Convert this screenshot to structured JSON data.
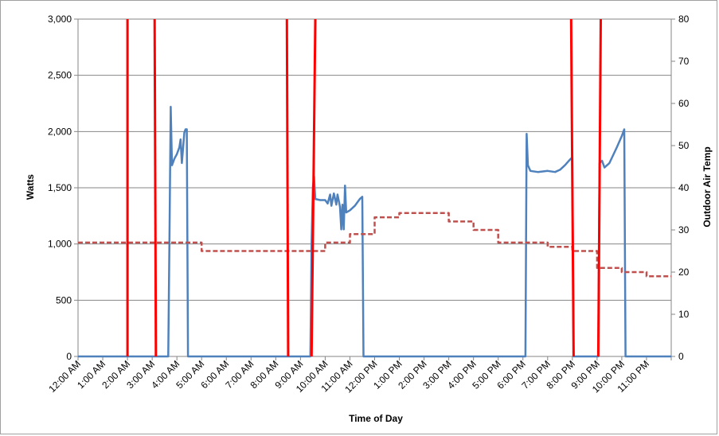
{
  "chart_data": {
    "type": "line",
    "xlabel": "Time of Day",
    "ylabel": "Watts",
    "y2label": "Outdoor Air Temp",
    "ylim": [
      0,
      3000
    ],
    "y2lim": [
      0,
      80
    ],
    "x_unit": "hours",
    "xlim": [
      0,
      24
    ],
    "categories": [
      "12:00 AM",
      "1:00 AM",
      "2:00 AM",
      "3:00 AM",
      "4:00 AM",
      "5:00 AM",
      "6:00 AM",
      "7:00 AM",
      "8:00 AM",
      "9:00 AM",
      "10:00 AM",
      "11:00 AM",
      "12:00 PM",
      "1:00 PM",
      "2:00 PM",
      "3:00 PM",
      "4:00 PM",
      "5:00 PM",
      "6:00 PM",
      "7:00 PM",
      "8:00 PM",
      "9:00 PM",
      "10:00 PM",
      "11:00 PM"
    ],
    "y_ticks": [
      "0",
      "500",
      "1,000",
      "1,500",
      "2,000",
      "2,500",
      "3,000"
    ],
    "y2_ticks": [
      "0",
      "10",
      "20",
      "30",
      "40",
      "50",
      "60",
      "70",
      "80"
    ],
    "grid": "horizontal",
    "legend": "none",
    "series": [
      {
        "axis": "left",
        "color": "#4f81bd",
        "style": "solid",
        "points": [
          [
            0,
            0
          ],
          [
            3.5,
            0
          ],
          [
            3.65,
            0
          ],
          [
            3.7,
            1100
          ],
          [
            3.75,
            2220
          ],
          [
            3.8,
            1700
          ],
          [
            3.9,
            1760
          ],
          [
            4.0,
            1800
          ],
          [
            4.1,
            1860
          ],
          [
            4.15,
            1930
          ],
          [
            4.2,
            1720
          ],
          [
            4.25,
            1850
          ],
          [
            4.3,
            1990
          ],
          [
            4.35,
            2020
          ],
          [
            4.4,
            2020
          ],
          [
            4.45,
            0
          ],
          [
            9.4,
            0
          ],
          [
            9.45,
            1000
          ],
          [
            9.5,
            1500
          ],
          [
            9.55,
            1600
          ],
          [
            9.6,
            1400
          ],
          [
            9.8,
            1390
          ],
          [
            10.0,
            1390
          ],
          [
            10.1,
            1360
          ],
          [
            10.2,
            1440
          ],
          [
            10.25,
            1340
          ],
          [
            10.35,
            1450
          ],
          [
            10.45,
            1350
          ],
          [
            10.5,
            1440
          ],
          [
            10.6,
            1330
          ],
          [
            10.65,
            1130
          ],
          [
            10.7,
            1350
          ],
          [
            10.75,
            1130
          ],
          [
            10.8,
            1520
          ],
          [
            10.85,
            1280
          ],
          [
            11.0,
            1300
          ],
          [
            11.2,
            1340
          ],
          [
            11.4,
            1400
          ],
          [
            11.5,
            1420
          ],
          [
            11.55,
            0
          ],
          [
            18.1,
            0
          ],
          [
            18.15,
            1980
          ],
          [
            18.2,
            1700
          ],
          [
            18.3,
            1650
          ],
          [
            18.6,
            1640
          ],
          [
            19.0,
            1650
          ],
          [
            19.3,
            1640
          ],
          [
            19.5,
            1660
          ],
          [
            19.7,
            1700
          ],
          [
            19.9,
            1750
          ],
          [
            20.0,
            1770
          ],
          [
            20.05,
            0
          ],
          [
            21.05,
            0
          ],
          [
            21.1,
            1720
          ],
          [
            21.2,
            1740
          ],
          [
            21.3,
            1680
          ],
          [
            21.5,
            1720
          ],
          [
            21.8,
            1860
          ],
          [
            22.0,
            1960
          ],
          [
            22.1,
            2020
          ],
          [
            22.15,
            0
          ],
          [
            24,
            0
          ]
        ]
      },
      {
        "axis": "right",
        "color": "#c0504d",
        "style": "dashed",
        "points": [
          [
            0,
            27
          ],
          [
            5,
            27
          ],
          [
            5,
            25
          ],
          [
            10,
            25
          ],
          [
            10,
            27
          ],
          [
            11,
            27
          ],
          [
            11,
            29
          ],
          [
            12,
            29
          ],
          [
            12,
            33
          ],
          [
            13,
            33
          ],
          [
            13,
            34
          ],
          [
            15,
            34
          ],
          [
            15,
            32
          ],
          [
            16,
            32
          ],
          [
            16,
            30
          ],
          [
            17,
            30
          ],
          [
            17,
            27
          ],
          [
            19,
            27
          ],
          [
            19,
            26
          ],
          [
            20,
            26
          ],
          [
            20,
            25
          ],
          [
            21,
            25
          ],
          [
            21,
            21
          ],
          [
            22,
            21
          ],
          [
            22,
            20
          ],
          [
            23,
            20
          ],
          [
            23,
            19
          ],
          [
            24,
            19
          ]
        ]
      },
      {
        "axis": "left",
        "color": "#ff0000",
        "style": "solid",
        "segments": [
          [
            [
              2.0,
              0
            ],
            [
              2.0,
              3000
            ]
          ],
          [
            [
              3.15,
              0
            ],
            [
              3.1,
              3000
            ]
          ],
          [
            [
              8.5,
              0
            ],
            [
              8.45,
              3000
            ]
          ],
          [
            [
              9.45,
              0
            ],
            [
              9.6,
              3000
            ]
          ],
          [
            [
              20.05,
              0
            ],
            [
              19.95,
              3000
            ]
          ],
          [
            [
              21.05,
              0
            ],
            [
              21.15,
              3000
            ]
          ]
        ]
      }
    ]
  }
}
